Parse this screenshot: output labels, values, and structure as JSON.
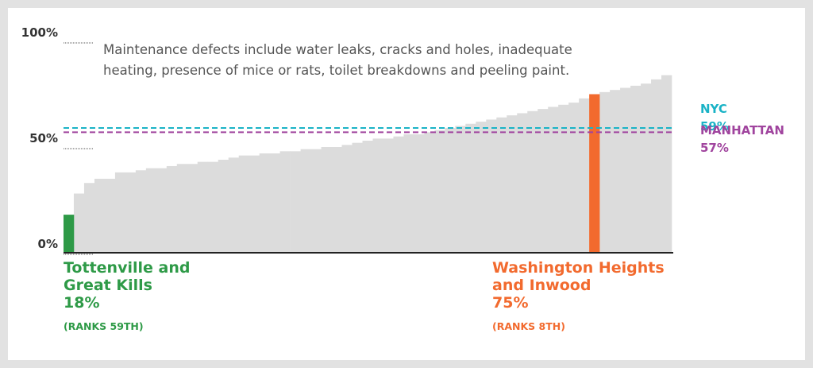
{
  "chart_data": {
    "type": "bar",
    "note": "Maintenance defects include water leaks, cracks and holes, inadequate heating, presence of mice or rats, toilet breakdowns and peeling paint.",
    "values": [
      18,
      28,
      33,
      35,
      35,
      38,
      38,
      39,
      40,
      40,
      41,
      42,
      42,
      43,
      43,
      44,
      45,
      46,
      46,
      47,
      47,
      48,
      48,
      49,
      49,
      50,
      50,
      51,
      52,
      53,
      54,
      54,
      55,
      56,
      56,
      57,
      58,
      59,
      60,
      61,
      62,
      63,
      64,
      65,
      66,
      67,
      68,
      69,
      70,
      71,
      73,
      75,
      76,
      77,
      78,
      79,
      80,
      82,
      84
    ],
    "colors": [
      "#2e9a47",
      "#dcdcdc",
      "#dcdcdc",
      "#dcdcdc",
      "#dcdcdc",
      "#dcdcdc",
      "#dcdcdc",
      "#dcdcdc",
      "#dcdcdc",
      "#dcdcdc",
      "#dcdcdc",
      "#dcdcdc",
      "#dcdcdc",
      "#dcdcdc",
      "#dcdcdc",
      "#dcdcdc",
      "#dcdcdc",
      "#dcdcdc",
      "#dcdcdc",
      "#dcdcdc",
      "#dcdcdc",
      "#dcdcdc",
      "#dcdcdc",
      "#dcdcdc",
      "#dcdcdc",
      "#dcdcdc",
      "#dcdcdc",
      "#dcdcdc",
      "#dcdcdc",
      "#dcdcdc",
      "#dcdcdc",
      "#dcdcdc",
      "#dcdcdc",
      "#dcdcdc",
      "#dcdcdc",
      "#dcdcdc",
      "#dcdcdc",
      "#dcdcdc",
      "#dcdcdc",
      "#dcdcdc",
      "#dcdcdc",
      "#dcdcdc",
      "#dcdcdc",
      "#dcdcdc",
      "#dcdcdc",
      "#dcdcdc",
      "#dcdcdc",
      "#dcdcdc",
      "#dcdcdc",
      "#dcdcdc",
      "#dcdcdc",
      "#f26a2e",
      "#dcdcdc",
      "#dcdcdc",
      "#dcdcdc",
      "#dcdcdc",
      "#dcdcdc",
      "#dcdcdc",
      "#dcdcdc"
    ],
    "labels": [
      "Tottenville and Great Kills",
      null,
      null,
      null,
      null,
      null,
      null,
      null,
      null,
      null,
      null,
      null,
      null,
      null,
      null,
      null,
      null,
      null,
      null,
      null,
      null,
      null,
      null,
      null,
      null,
      null,
      null,
      null,
      null,
      null,
      null,
      null,
      null,
      null,
      null,
      null,
      null,
      null,
      null,
      null,
      null,
      null,
      null,
      null,
      null,
      null,
      null,
      null,
      null,
      null,
      null,
      "Washington Heights and Inwood",
      null,
      null,
      null,
      null,
      null,
      null,
      null
    ],
    "value_labels": [
      "18%",
      null,
      null,
      null,
      null,
      null,
      null,
      null,
      null,
      null,
      null,
      null,
      null,
      null,
      null,
      null,
      null,
      null,
      null,
      null,
      null,
      null,
      null,
      null,
      null,
      null,
      null,
      null,
      null,
      null,
      null,
      null,
      null,
      null,
      null,
      null,
      null,
      null,
      null,
      null,
      null,
      null,
      null,
      null,
      null,
      null,
      null,
      null,
      null,
      null,
      null,
      "75%",
      null,
      null,
      null,
      null,
      null,
      null,
      null
    ],
    "ranks": [
      "(RANKS 59TH)",
      null,
      null,
      null,
      null,
      null,
      null,
      null,
      null,
      null,
      null,
      null,
      null,
      null,
      null,
      null,
      null,
      null,
      null,
      null,
      null,
      null,
      null,
      null,
      null,
      null,
      null,
      null,
      null,
      null,
      null,
      null,
      null,
      null,
      null,
      null,
      null,
      null,
      null,
      null,
      null,
      null,
      null,
      null,
      null,
      null,
      null,
      null,
      null,
      null,
      null,
      "(RANKS 8TH)",
      null,
      null,
      null,
      null,
      null,
      null,
      null
    ],
    "reference_lines": [
      {
        "name": "NYC",
        "value": 59,
        "value_label": "59%",
        "color": "#1ab3c6"
      },
      {
        "name": "MANHATTAN",
        "value": 57,
        "value_label": "57%",
        "color": "#a0449e"
      }
    ],
    "ylim": [
      0,
      100
    ],
    "yticks": [
      {
        "value": 0,
        "label": "0%"
      },
      {
        "value": 50,
        "label": "50%"
      },
      {
        "value": 100,
        "label": "100%"
      }
    ]
  }
}
